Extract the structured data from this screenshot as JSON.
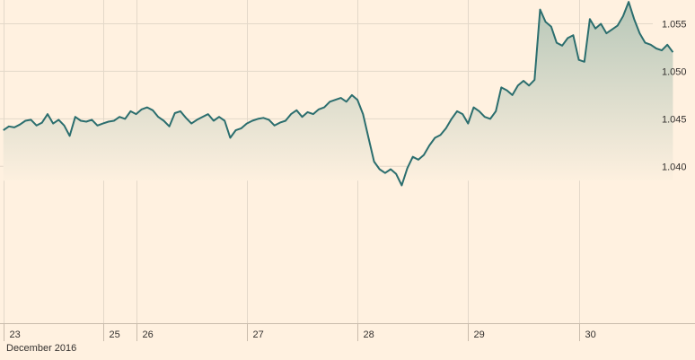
{
  "chart_data": {
    "type": "area",
    "title": "",
    "xlabel": "",
    "ylabel": "",
    "x_axis_caption": "December 2016",
    "x_ticks": [
      {
        "label": "23",
        "x": 0
      },
      {
        "label": "25",
        "x": 18
      },
      {
        "label": "26",
        "x": 24
      },
      {
        "label": "27",
        "x": 44
      },
      {
        "label": "28",
        "x": 64
      },
      {
        "label": "29",
        "x": 84
      },
      {
        "label": "30",
        "x": 104
      }
    ],
    "y_ticks": [
      {
        "label": "1.040",
        "value": 1.04
      },
      {
        "label": "1.045",
        "value": 1.045
      },
      {
        "label": "1.050",
        "value": 1.05
      },
      {
        "label": "1.055",
        "value": 1.055
      }
    ],
    "xlim": [
      -0.6,
      125
    ],
    "ylim": [
      1.0235,
      1.0575
    ],
    "baseline": 1.0385,
    "grid": true,
    "legend": "none",
    "line_color": "#2b6e6e",
    "fill_top_color": "#b7c7b8",
    "fill_bottom_color": "#fff1e0",
    "series": [
      {
        "x": [
          0,
          1,
          2,
          3,
          4,
          5,
          6,
          7,
          8,
          9,
          10,
          11,
          12,
          13,
          14,
          15,
          16,
          17,
          18,
          19,
          20,
          21,
          22,
          23,
          24,
          25,
          26,
          27,
          28,
          29,
          30,
          31,
          32,
          33,
          34,
          35,
          36,
          37,
          38,
          39,
          40,
          41,
          42,
          43,
          44,
          45,
          46,
          47,
          48,
          49,
          50,
          51,
          52,
          53,
          54,
          55,
          56,
          57,
          58,
          59,
          60,
          61,
          62,
          63,
          64,
          65,
          66,
          67,
          68,
          69,
          70,
          71,
          72,
          73,
          74,
          75,
          76,
          77,
          78,
          79,
          80,
          81,
          82,
          83,
          84,
          85,
          86,
          87,
          88,
          89,
          90,
          91,
          92,
          93,
          94,
          95,
          96,
          97,
          98,
          99,
          100,
          101,
          102,
          103,
          104,
          105,
          106,
          107,
          108,
          109,
          110,
          111,
          112,
          113,
          114,
          115,
          116,
          117,
          118,
          119,
          120,
          121
        ],
        "values": [
          1.0438,
          1.0442,
          1.0441,
          1.0444,
          1.0448,
          1.0449,
          1.0443,
          1.0446,
          1.0455,
          1.0445,
          1.0449,
          1.0443,
          1.0432,
          1.0452,
          1.0448,
          1.0447,
          1.0449,
          1.0443,
          1.0445,
          1.0447,
          1.0448,
          1.0452,
          1.045,
          1.0458,
          1.0455,
          1.046,
          1.0462,
          1.0459,
          1.0452,
          1.0448,
          1.0442,
          1.0456,
          1.0458,
          1.0451,
          1.0445,
          1.0449,
          1.0452,
          1.0455,
          1.0448,
          1.0452,
          1.0448,
          1.043,
          1.0438,
          1.044,
          1.0445,
          1.0448,
          1.045,
          1.0451,
          1.0449,
          1.0443,
          1.0446,
          1.0448,
          1.0455,
          1.0459,
          1.0452,
          1.0457,
          1.0455,
          1.046,
          1.0462,
          1.0468,
          1.047,
          1.0472,
          1.0468,
          1.0475,
          1.047,
          1.0455,
          1.043,
          1.0405,
          1.0397,
          1.0393,
          1.0397,
          1.0392,
          1.038,
          1.0398,
          1.041,
          1.0407,
          1.0412,
          1.0422,
          1.043,
          1.0433,
          1.044,
          1.045,
          1.0458,
          1.0455,
          1.0445,
          1.0462,
          1.0458,
          1.0452,
          1.045,
          1.0458,
          1.0483,
          1.048,
          1.0475,
          1.0485,
          1.049,
          1.0485,
          1.0491,
          1.0565,
          1.0552,
          1.0547,
          1.053,
          1.0527,
          1.0535,
          1.0538,
          1.0512,
          1.051,
          1.0555,
          1.0545,
          1.055,
          1.054,
          1.0544,
          1.0548,
          1.0558,
          1.0573,
          1.0555,
          1.054,
          1.053,
          1.0528,
          1.0524,
          1.0522,
          1.0528,
          1.052
        ]
      }
    ]
  }
}
